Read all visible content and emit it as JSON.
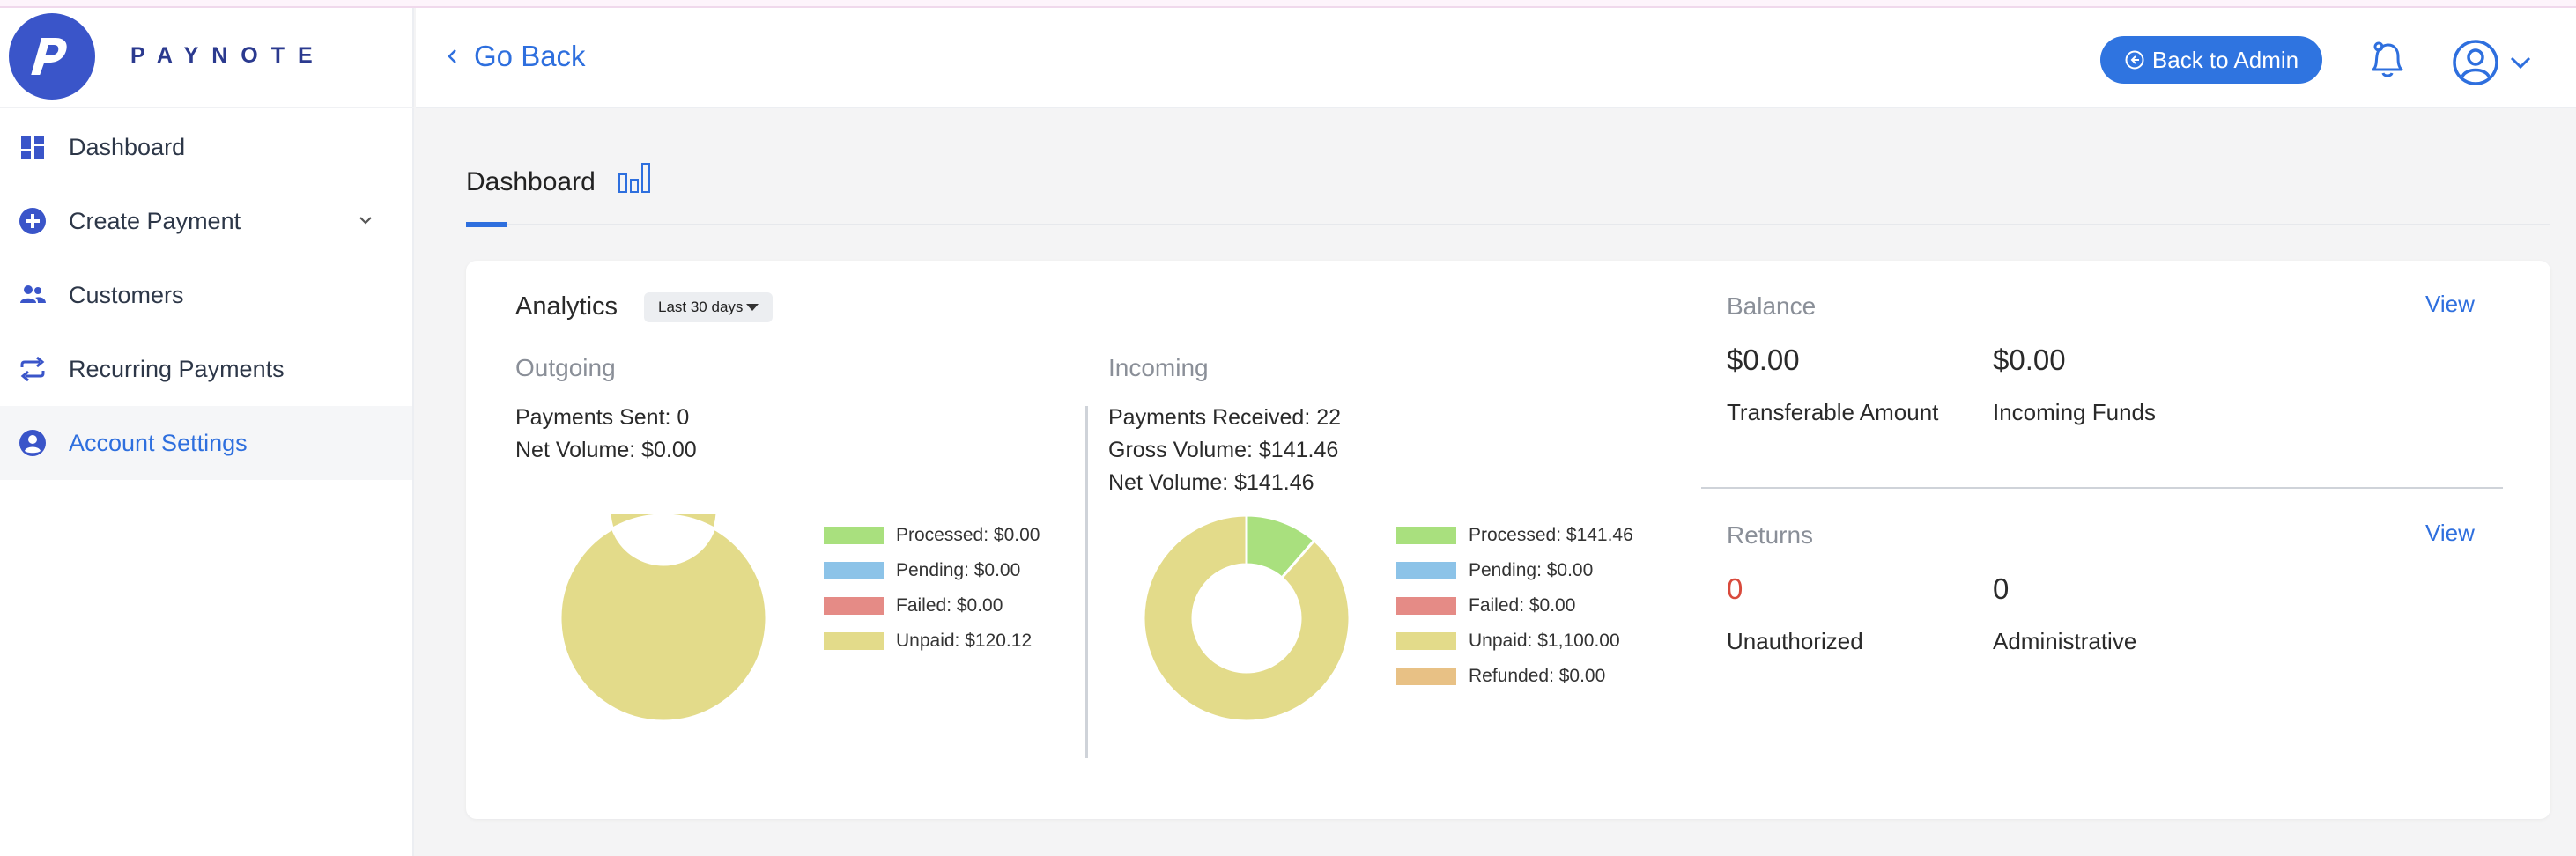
{
  "brand": {
    "name": "PAYNOTE",
    "logo_letter": "P"
  },
  "sidebar": {
    "items": [
      {
        "label": "Dashboard",
        "icon": "dashboard-icon"
      },
      {
        "label": "Create Payment",
        "icon": "plus-circle-icon",
        "has_submenu": true
      },
      {
        "label": "Customers",
        "icon": "users-icon"
      },
      {
        "label": "Recurring Payments",
        "icon": "repeat-icon"
      },
      {
        "label": "Account Settings",
        "icon": "user-circle-icon",
        "active": true
      }
    ]
  },
  "header": {
    "back_label": "Go Back",
    "admin_button": "Back to Admin"
  },
  "page": {
    "title": "Dashboard"
  },
  "analytics": {
    "title": "Analytics",
    "period": "Last 30 days",
    "outgoing": {
      "label": "Outgoing",
      "payments_sent": "Payments Sent: 0",
      "net_volume": "Net Volume: $0.00",
      "legend": [
        {
          "label": "Processed: $0.00",
          "color": "#a9e07e"
        },
        {
          "label": "Pending: $0.00",
          "color": "#8cc3e8"
        },
        {
          "label": "Failed: $0.00",
          "color": "#e58b86"
        },
        {
          "label": "Unpaid: $120.12",
          "color": "#e3db8a"
        }
      ],
      "donut": [
        {
          "name": "Unpaid",
          "value": 120.12,
          "color": "#e3db8a"
        }
      ]
    },
    "incoming": {
      "label": "Incoming",
      "payments_received": "Payments Received: 22",
      "gross_volume": "Gross Volume: $141.46",
      "net_volume": "Net Volume: $141.46",
      "legend": [
        {
          "label": "Processed: $141.46",
          "color": "#a9e07e"
        },
        {
          "label": "Pending: $0.00",
          "color": "#8cc3e8"
        },
        {
          "label": "Failed: $0.00",
          "color": "#e58b86"
        },
        {
          "label": "Unpaid: $1,100.00",
          "color": "#e3db8a"
        },
        {
          "label": "Refunded: $0.00",
          "color": "#e8c185"
        }
      ],
      "donut": [
        {
          "name": "Processed",
          "value": 141.46,
          "color": "#a9e07e"
        },
        {
          "name": "Unpaid",
          "value": 1100.0,
          "color": "#e3db8a"
        }
      ]
    }
  },
  "balance": {
    "title": "Balance",
    "view_label": "View",
    "transferable_value": "$0.00",
    "transferable_label": "Transferable Amount",
    "incoming_value": "$0.00",
    "incoming_label": "Incoming Funds"
  },
  "returns": {
    "title": "Returns",
    "view_label": "View",
    "unauthorized_value": "0",
    "unauthorized_label": "Unauthorized",
    "administrative_value": "0",
    "administrative_label": "Administrative"
  }
}
